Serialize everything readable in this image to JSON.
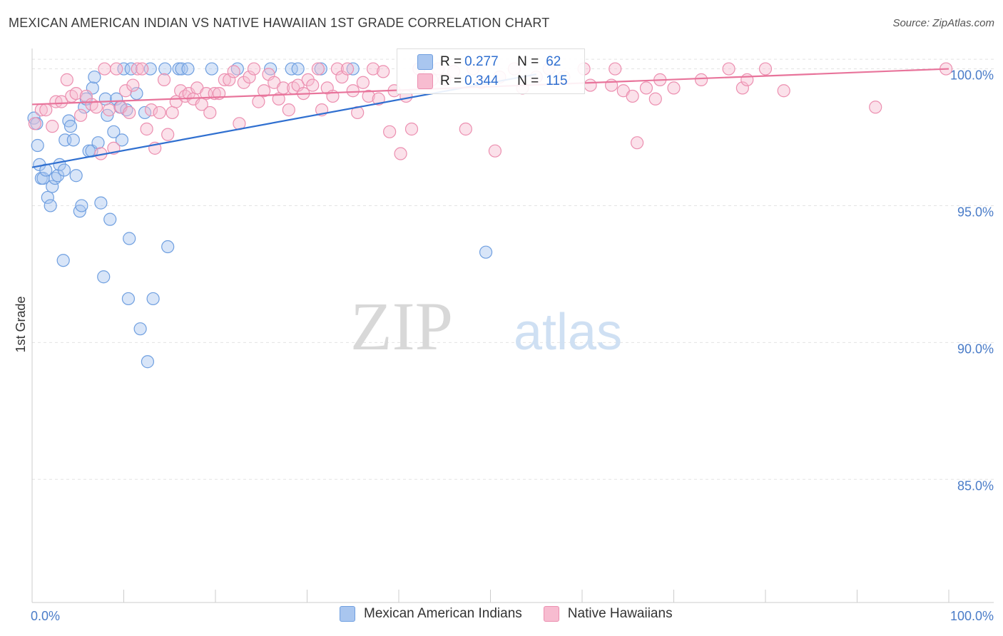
{
  "title": "MEXICAN AMERICAN INDIAN VS NATIVE HAWAIIAN 1ST GRADE CORRELATION CHART",
  "source": "Source: ZipAtlas.com",
  "watermark": {
    "zip": "ZIP",
    "atlas": "atlas"
  },
  "legend_stats": [
    {
      "r_label": "R =",
      "r_value": "0.277",
      "n_label": "N =",
      "n_value": "62",
      "color": "#a9c6ef",
      "border": "#6f9fe0"
    },
    {
      "r_label": "R =",
      "r_value": "0.344",
      "n_label": "N =",
      "n_value": "115",
      "color": "#f7bcd0",
      "border": "#ec8fb0"
    }
  ],
  "chart_data": {
    "type": "scatter",
    "xlabel": "",
    "ylabel": "1st Grade",
    "xlim": [
      0,
      100
    ],
    "ylim": [
      80.5,
      100.9
    ],
    "x_tick_labels": [
      "0.0%",
      "100.0%"
    ],
    "y_tick_labels": [
      "100.0%",
      "95.0%",
      "90.0%",
      "85.0%"
    ],
    "y_ticks": [
      100,
      95,
      90,
      85
    ],
    "grid": "horizontal dashed",
    "legend_position": "bottom",
    "series": [
      {
        "name": "Mexican American Indians",
        "color": "#a9c6ef",
        "stroke": "#6f9fe0",
        "line_color": "#2f6fd0",
        "trend": {
          "x": [
            0,
            55
          ],
          "y": [
            96.4,
            99.8
          ]
        },
        "points": [
          [
            0.2,
            98.2
          ],
          [
            0.5,
            98.0
          ],
          [
            0.6,
            97.2
          ],
          [
            0.8,
            96.5
          ],
          [
            1.0,
            96.0
          ],
          [
            1.2,
            96.0
          ],
          [
            1.5,
            96.3
          ],
          [
            1.7,
            95.3
          ],
          [
            2.0,
            95.0
          ],
          [
            2.2,
            95.7
          ],
          [
            2.5,
            96.0
          ],
          [
            2.8,
            96.1
          ],
          [
            3.0,
            96.5
          ],
          [
            3.5,
            96.3
          ],
          [
            3.6,
            97.4
          ],
          [
            4.0,
            98.1
          ],
          [
            4.2,
            97.9
          ],
          [
            4.5,
            97.4
          ],
          [
            4.8,
            96.1
          ],
          [
            5.2,
            94.8
          ],
          [
            5.4,
            95.0
          ],
          [
            5.7,
            98.6
          ],
          [
            5.9,
            98.9
          ],
          [
            6.2,
            97.0
          ],
          [
            6.5,
            97.0
          ],
          [
            6.6,
            99.3
          ],
          [
            6.8,
            99.7
          ],
          [
            7.2,
            97.3
          ],
          [
            7.5,
            95.1
          ],
          [
            7.8,
            92.4
          ],
          [
            8.0,
            98.9
          ],
          [
            8.2,
            98.3
          ],
          [
            8.5,
            94.5
          ],
          [
            8.9,
            97.7
          ],
          [
            9.2,
            98.9
          ],
          [
            9.6,
            98.6
          ],
          [
            9.8,
            97.4
          ],
          [
            10.0,
            100.0
          ],
          [
            10.3,
            98.5
          ],
          [
            10.5,
            91.6
          ],
          [
            10.6,
            93.8
          ],
          [
            10.8,
            100.0
          ],
          [
            11.4,
            99.1
          ],
          [
            11.8,
            90.5
          ],
          [
            12.3,
            98.4
          ],
          [
            12.6,
            89.3
          ],
          [
            12.9,
            100.0
          ],
          [
            13.2,
            91.6
          ],
          [
            14.5,
            100.0
          ],
          [
            14.8,
            93.5
          ],
          [
            16.0,
            100.0
          ],
          [
            16.3,
            100.0
          ],
          [
            17.0,
            100.0
          ],
          [
            19.6,
            100.0
          ],
          [
            22.4,
            100.0
          ],
          [
            26.0,
            100.0
          ],
          [
            28.3,
            100.0
          ],
          [
            29.0,
            100.0
          ],
          [
            31.5,
            100.0
          ],
          [
            35.0,
            100.0
          ],
          [
            3.4,
            93.0
          ],
          [
            49.5,
            93.3
          ]
        ]
      },
      {
        "name": "Native Hawaiians",
        "color": "#f7bcd0",
        "stroke": "#ec8fb0",
        "line_color": "#e8749b",
        "trend": {
          "x": [
            0,
            100
          ],
          "y": [
            98.7,
            100.0
          ]
        },
        "points": [
          [
            0.3,
            98.0
          ],
          [
            1.0,
            98.5
          ],
          [
            1.5,
            98.5
          ],
          [
            2.2,
            97.9
          ],
          [
            2.6,
            98.8
          ],
          [
            3.2,
            98.8
          ],
          [
            3.8,
            99.6
          ],
          [
            4.3,
            99.0
          ],
          [
            4.8,
            99.1
          ],
          [
            5.3,
            98.3
          ],
          [
            5.9,
            99.0
          ],
          [
            6.5,
            98.7
          ],
          [
            7.0,
            98.6
          ],
          [
            7.5,
            96.9
          ],
          [
            7.9,
            100.0
          ],
          [
            8.4,
            98.5
          ],
          [
            8.9,
            97.1
          ],
          [
            9.2,
            100.0
          ],
          [
            9.7,
            98.6
          ],
          [
            10.2,
            99.2
          ],
          [
            10.6,
            98.4
          ],
          [
            11.0,
            99.4
          ],
          [
            11.5,
            100.0
          ],
          [
            12.0,
            100.0
          ],
          [
            12.5,
            97.8
          ],
          [
            13.0,
            98.5
          ],
          [
            13.4,
            97.1
          ],
          [
            13.9,
            98.4
          ],
          [
            14.4,
            99.6
          ],
          [
            14.8,
            97.6
          ],
          [
            15.3,
            98.4
          ],
          [
            15.7,
            98.8
          ],
          [
            16.2,
            99.2
          ],
          [
            16.7,
            99.0
          ],
          [
            17.1,
            99.1
          ],
          [
            17.6,
            98.9
          ],
          [
            18.0,
            99.3
          ],
          [
            18.5,
            98.7
          ],
          [
            19.0,
            99.1
          ],
          [
            19.4,
            98.4
          ],
          [
            19.9,
            99.1
          ],
          [
            20.4,
            99.1
          ],
          [
            21.0,
            99.6
          ],
          [
            21.5,
            99.6
          ],
          [
            22.0,
            99.9
          ],
          [
            22.6,
            98.0
          ],
          [
            23.1,
            99.5
          ],
          [
            23.7,
            99.7
          ],
          [
            24.2,
            100.0
          ],
          [
            24.7,
            98.8
          ],
          [
            25.3,
            99.2
          ],
          [
            25.8,
            99.8
          ],
          [
            26.4,
            99.5
          ],
          [
            26.9,
            98.9
          ],
          [
            27.4,
            99.3
          ],
          [
            28.0,
            98.5
          ],
          [
            28.5,
            99.3
          ],
          [
            29.0,
            99.4
          ],
          [
            29.6,
            99.1
          ],
          [
            30.1,
            99.6
          ],
          [
            30.6,
            99.4
          ],
          [
            31.2,
            100.0
          ],
          [
            31.6,
            98.5
          ],
          [
            32.2,
            99.3
          ],
          [
            32.8,
            99.0
          ],
          [
            33.3,
            100.0
          ],
          [
            33.8,
            99.7
          ],
          [
            34.4,
            100.0
          ],
          [
            35.0,
            99.2
          ],
          [
            35.5,
            98.4
          ],
          [
            36.1,
            99.5
          ],
          [
            36.7,
            99.0
          ],
          [
            37.2,
            100.0
          ],
          [
            37.8,
            98.9
          ],
          [
            38.3,
            99.9
          ],
          [
            39.0,
            97.7
          ],
          [
            39.5,
            99.2
          ],
          [
            40.2,
            96.9
          ],
          [
            40.8,
            99.0
          ],
          [
            41.4,
            97.8
          ],
          [
            42.2,
            100.0
          ],
          [
            43.0,
            99.5
          ],
          [
            43.6,
            99.6
          ],
          [
            44.3,
            100.0
          ],
          [
            45.0,
            99.6
          ],
          [
            46.0,
            99.9
          ],
          [
            47.3,
            97.8
          ],
          [
            48.1,
            100.0
          ],
          [
            49.0,
            99.5
          ],
          [
            50.5,
            97.0
          ],
          [
            51.0,
            99.7
          ],
          [
            52.6,
            100.0
          ],
          [
            53.5,
            99.3
          ],
          [
            55.0,
            99.7
          ],
          [
            56.4,
            100.0
          ],
          [
            58.0,
            99.7
          ],
          [
            60.2,
            100.0
          ],
          [
            60.9,
            99.4
          ],
          [
            63.2,
            99.4
          ],
          [
            63.6,
            100.0
          ],
          [
            64.5,
            99.2
          ],
          [
            65.5,
            99.0
          ],
          [
            66.0,
            97.3
          ],
          [
            67.0,
            99.3
          ],
          [
            68.0,
            98.9
          ],
          [
            68.5,
            99.6
          ],
          [
            70.0,
            99.3
          ],
          [
            73.0,
            99.6
          ],
          [
            76.0,
            100.0
          ],
          [
            77.5,
            99.3
          ],
          [
            78.0,
            99.6
          ],
          [
            80.0,
            100.0
          ],
          [
            82.0,
            99.2
          ],
          [
            92.0,
            98.6
          ],
          [
            99.7,
            100.0
          ]
        ]
      }
    ]
  }
}
